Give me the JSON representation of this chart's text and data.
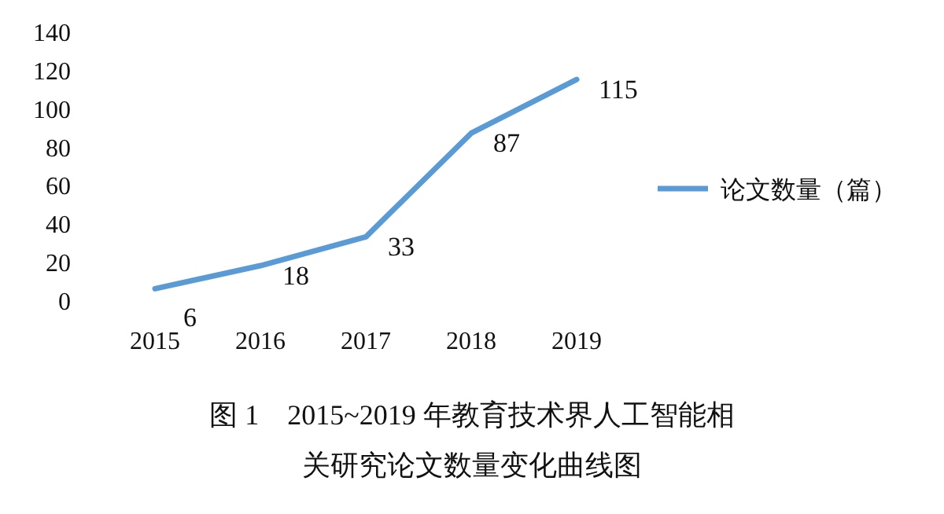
{
  "chart_data": {
    "type": "line",
    "title": "图 1　2015~2019 年教育技术界人工智能相关研究论文数量变化曲线图",
    "categories": [
      "2015",
      "2016",
      "2017",
      "2018",
      "2019"
    ],
    "series": [
      {
        "name": "论文数量（篇）",
        "color": "#5b9bd5",
        "values": [
          6,
          18,
          33,
          87,
          115
        ]
      }
    ],
    "ylim": [
      0,
      140
    ],
    "yticks": [
      0,
      20,
      40,
      60,
      80,
      100,
      120,
      140
    ],
    "data_labels": true,
    "legend": "right",
    "marker": "none",
    "line_style": "solid"
  }
}
